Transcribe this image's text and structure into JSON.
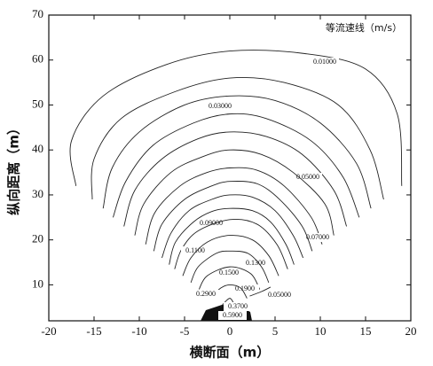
{
  "chart_data": {
    "type": "contour",
    "annotation": "等流速线（m/s）",
    "x_label": "横断面（m）",
    "y_label": "纵向距离（m）",
    "xlim": [
      -20,
      20
    ],
    "xticks": [
      -20,
      -15,
      -10,
      -5,
      0,
      5,
      10,
      15,
      20
    ],
    "ylim": [
      2,
      70
    ],
    "yticks": [
      10,
      20,
      30,
      40,
      50,
      60,
      70
    ],
    "color": "#222222",
    "contours": [
      {
        "label": "0.01000",
        "x": [
          -17,
          -17.5,
          -14,
          -7,
          0,
          8,
          15,
          18.5,
          19
        ],
        "y": [
          32,
          42,
          52,
          59,
          62,
          61.5,
          58,
          48,
          32
        ]
      },
      {
        "x": [
          -15.2,
          -15,
          -12,
          -6,
          0,
          6,
          12,
          15.5,
          17
        ],
        "y": [
          29,
          38,
          47,
          53,
          56,
          55,
          50,
          40,
          29
        ]
      },
      {
        "label": "0.03000",
        "x": [
          -14,
          -13,
          -10,
          -5,
          0,
          5,
          10,
          14,
          15.6
        ],
        "y": [
          27,
          36,
          44,
          50,
          52,
          51,
          46,
          37,
          27
        ]
      },
      {
        "x": [
          -12.9,
          -11.5,
          -8.5,
          -4,
          0,
          4,
          9,
          12.5,
          14.3
        ],
        "y": [
          25,
          33,
          41,
          46,
          48,
          47,
          42,
          34,
          25
        ]
      },
      {
        "label": "0.05000",
        "x": [
          -11.7,
          -10.5,
          -7.5,
          -3.5,
          0,
          4,
          8,
          11.5,
          12.9
        ],
        "y": [
          23,
          31,
          38,
          42.5,
          44,
          43,
          39,
          31,
          23
        ]
      },
      {
        "x": [
          -10.5,
          -9.5,
          -6.5,
          -3,
          0,
          3.5,
          7,
          10.5,
          11.5
        ],
        "y": [
          21,
          28,
          35,
          38.5,
          40,
          39,
          35,
          28,
          21
        ]
      },
      {
        "label": "0.07000",
        "x": [
          -9.3,
          -8.3,
          -5.5,
          -2.5,
          0,
          3,
          6,
          9,
          10.2
        ],
        "y": [
          19,
          26,
          32,
          35,
          36,
          35.5,
          32,
          25,
          19
        ]
      },
      {
        "x": [
          -8.4,
          -7.5,
          -5,
          -2,
          0,
          3,
          5.5,
          8,
          9.1
        ],
        "y": [
          17.5,
          23.5,
          29,
          32,
          33,
          32.5,
          29,
          23,
          17.5
        ]
      },
      {
        "label": "0.09000",
        "x": [
          -7.5,
          -6.5,
          -4.5,
          -2,
          0,
          2.5,
          5,
          7,
          8.1
        ],
        "y": [
          16,
          21.5,
          26.5,
          29,
          30,
          29.5,
          26.5,
          21,
          16
        ]
      },
      {
        "x": [
          -6.7,
          -6,
          -4,
          -2,
          0,
          2.5,
          4.5,
          6.2,
          7.1
        ],
        "y": [
          14.5,
          19.5,
          24,
          26.3,
          27,
          26.5,
          24,
          19,
          14.5
        ]
      },
      {
        "label": "0.1100",
        "x": [
          -6.1,
          -5.3,
          -3.5,
          0,
          3,
          5.2,
          6.4
        ],
        "y": [
          13.5,
          18,
          22,
          24.5,
          23.5,
          19,
          13.5
        ]
      },
      {
        "label": "0.1300",
        "x": [
          -5.2,
          -4.3,
          -2.5,
          0,
          2.5,
          4.3,
          5.4
        ],
        "y": [
          12,
          16,
          19.5,
          21,
          20,
          16.5,
          12
        ]
      },
      {
        "label": "0.1500",
        "x": [
          -4.3,
          -3.5,
          -1.5,
          0,
          2,
          3.5,
          4.3
        ],
        "y": [
          10.5,
          14,
          17,
          17.5,
          17,
          14,
          10.5
        ]
      },
      {
        "label": "0.1900",
        "x": [
          -3.4,
          -2.5,
          0,
          2.3,
          3.3
        ],
        "y": [
          9,
          12,
          14,
          12.5,
          9
        ]
      },
      {
        "label": "0.2900",
        "x": [
          -2.2,
          -1,
          0,
          1.2,
          1.9
        ],
        "y": [
          7,
          9.3,
          10,
          9.3,
          7
        ]
      },
      {
        "label": "0.3700",
        "x": [
          -1.05,
          0,
          0.6
        ],
        "y": [
          5,
          7,
          5
        ]
      },
      {
        "label": "0.5900",
        "x": [
          -0.5,
          0,
          0.4
        ],
        "y": [
          3.2,
          4,
          3.2
        ]
      },
      {
        "label": "0.05000",
        "x": [
          2.2,
          3.5,
          4.5
        ],
        "y": [
          7.5,
          8.5,
          9.5
        ]
      }
    ]
  }
}
